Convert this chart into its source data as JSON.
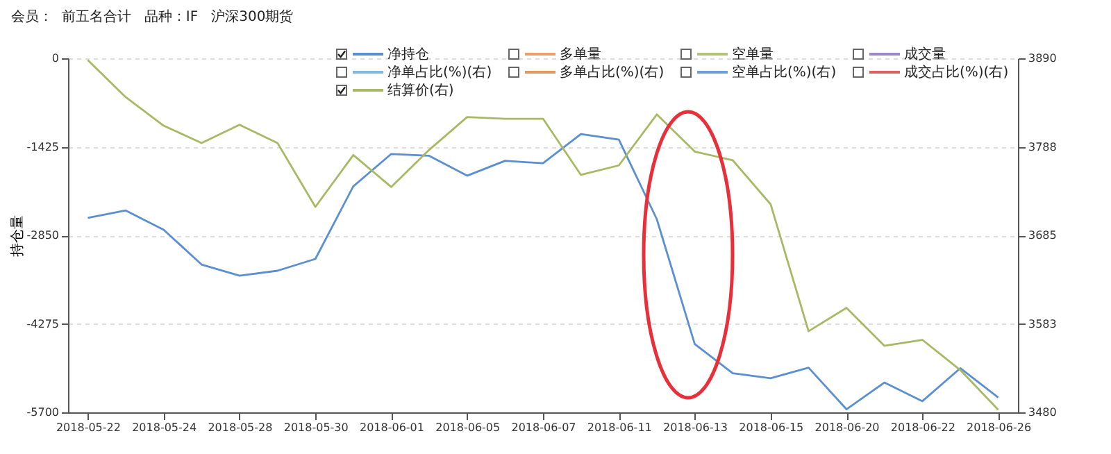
{
  "chart_data": {
    "type": "line",
    "title": "会员：  前五名合计   品种：IF   沪深300期货",
    "ylabel": "持仓量",
    "categories": [
      "2018-05-22",
      null,
      "2018-05-24",
      null,
      "2018-05-28",
      null,
      "2018-05-30",
      null,
      "2018-06-01",
      null,
      "2018-06-05",
      null,
      "2018-06-07",
      null,
      "2018-06-11",
      null,
      "2018-06-13",
      null,
      "2018-06-15",
      null,
      "2018-06-20",
      null,
      "2018-06-22",
      null,
      "2018-06-26"
    ],
    "series": [
      {
        "name": "净持仓",
        "color": "#5b8fd0",
        "values": [
          -2570,
          -2450,
          -2760,
          -3320,
          -3500,
          -3420,
          -3230,
          -2060,
          -1540,
          -1570,
          -1890,
          -1650,
          -1690,
          -1220,
          -1310,
          -2590,
          -4600,
          -5070,
          -5150,
          -4980,
          -5650,
          -5220,
          -5520,
          -4990,
          -5460
        ]
      },
      {
        "name": "多单量",
        "color": "#e8a070",
        "values": [
          null,
          null,
          null,
          null,
          null,
          null,
          null,
          null,
          null,
          null,
          null,
          null,
          null,
          null,
          null,
          null,
          null,
          null,
          null,
          null,
          null,
          null,
          null,
          null,
          null
        ]
      },
      {
        "name": "空单量",
        "color": "#b5c27a",
        "values": [
          null,
          null,
          null,
          null,
          null,
          null,
          null,
          null,
          null,
          null,
          null,
          null,
          null,
          null,
          null,
          null,
          null,
          null,
          null,
          null,
          null,
          null,
          null,
          null,
          null
        ]
      },
      {
        "name": "成交量",
        "color": "#9a88c9",
        "values": [
          null,
          null,
          null,
          null,
          null,
          null,
          null,
          null,
          null,
          null,
          null,
          null,
          null,
          null,
          null,
          null,
          null,
          null,
          null,
          null,
          null,
          null,
          null,
          null,
          null
        ]
      },
      {
        "name": "净单占比(%)(右)",
        "color": "#7fb8e0",
        "axis": "y2",
        "values": [
          null,
          null,
          null,
          null,
          null,
          null,
          null,
          null,
          null,
          null,
          null,
          null,
          null,
          null,
          null,
          null,
          null,
          null,
          null,
          null,
          null,
          null,
          null,
          null,
          null
        ]
      },
      {
        "name": "多单占比(%)(右)",
        "color": "#e09a60",
        "axis": "y2",
        "values": [
          null,
          null,
          null,
          null,
          null,
          null,
          null,
          null,
          null,
          null,
          null,
          null,
          null,
          null,
          null,
          null,
          null,
          null,
          null,
          null,
          null,
          null,
          null,
          null,
          null
        ]
      },
      {
        "name": "空单占比(%)(右)",
        "color": "#6a9fd8",
        "axis": "y2",
        "values": [
          null,
          null,
          null,
          null,
          null,
          null,
          null,
          null,
          null,
          null,
          null,
          null,
          null,
          null,
          null,
          null,
          null,
          null,
          null,
          null,
          null,
          null,
          null,
          null,
          null
        ]
      },
      {
        "name": "成交占比(%)(右)",
        "color": "#e06060",
        "axis": "y2",
        "values": [
          null,
          null,
          null,
          null,
          null,
          null,
          null,
          null,
          null,
          null,
          null,
          null,
          null,
          null,
          null,
          null,
          null,
          null,
          null,
          null,
          null,
          null,
          null,
          null,
          null
        ]
      },
      {
        "name": "结算价(右)",
        "color": "#a7b964",
        "axis": "y2",
        "values": [
          3888,
          3845,
          3812,
          3792,
          3813,
          3792,
          3718,
          3778,
          3741,
          3784,
          3822,
          3820,
          3820,
          3755,
          3766,
          3825,
          3782,
          3772,
          3721,
          3574,
          3601,
          3557,
          3564,
          3529,
          3483
        ]
      }
    ],
    "ylim": [
      -5700,
      0
    ],
    "yticks": [
      0,
      -1425,
      -2850,
      -4275,
      -5700
    ],
    "y2lim": [
      3480,
      3890
    ],
    "y2ticks": [
      3480,
      {
        "value": 3582.5,
        "label": "3583"
      },
      3685,
      {
        "value": 3787.5,
        "label": "3788"
      },
      3890
    ],
    "grid": "y",
    "legend": "top"
  }
}
